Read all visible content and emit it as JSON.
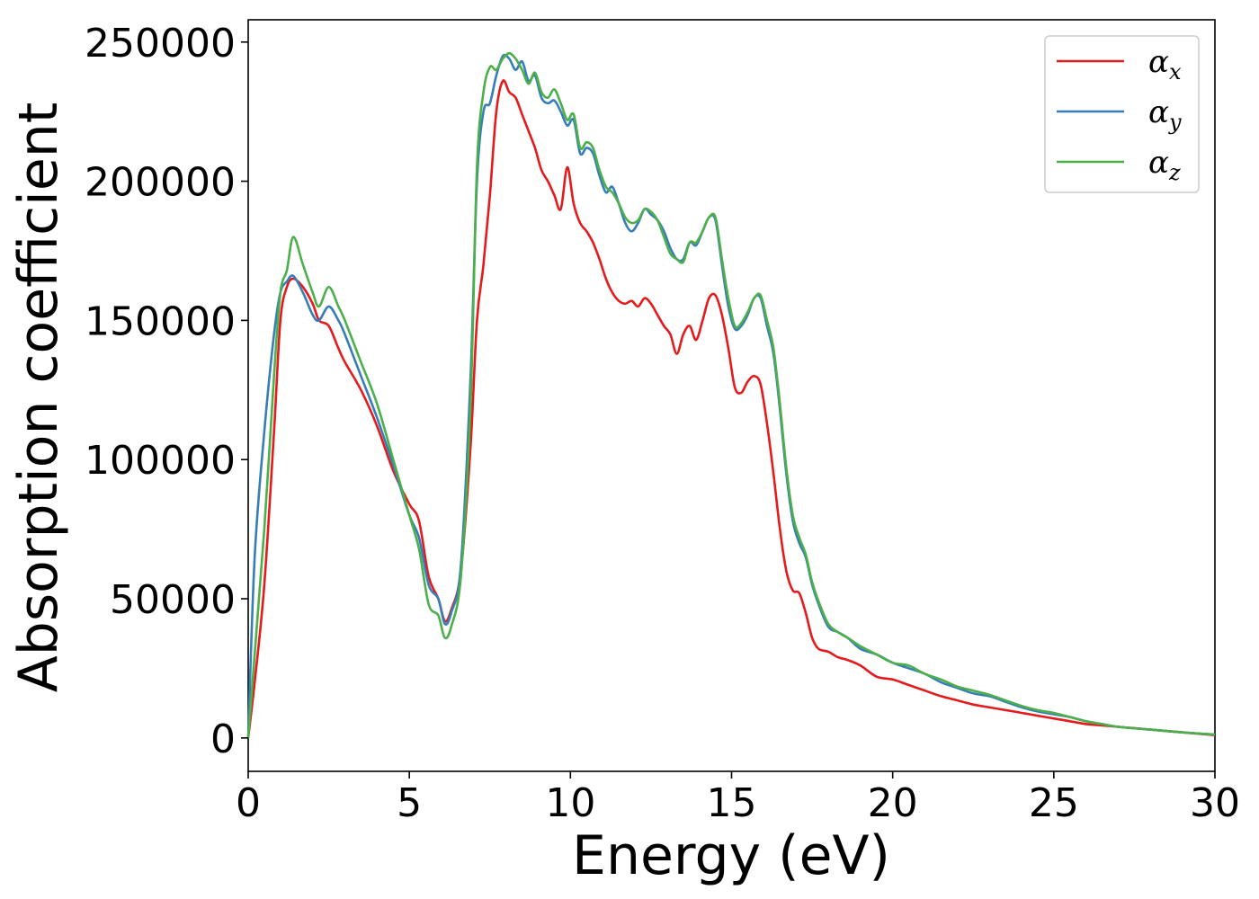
{
  "chart_data": {
    "type": "line",
    "title": "",
    "xlabel": "Energy (eV)",
    "ylabel": "Absorption coefficient",
    "xlim": [
      0,
      30
    ],
    "ylim": [
      -12000,
      258000
    ],
    "xticks": [
      0,
      5,
      10,
      15,
      20,
      25,
      30
    ],
    "yticks": [
      0,
      50000,
      100000,
      150000,
      200000,
      250000
    ],
    "grid": false,
    "legend_position": "top-right",
    "series": [
      {
        "name": "α_x",
        "symbol": "α",
        "subscript": "x",
        "color": "#e41a1c",
        "x": [
          0,
          0.2,
          0.5,
          0.8,
          1.0,
          1.2,
          1.4,
          1.7,
          2.0,
          2.2,
          2.5,
          2.8,
          3.0,
          3.5,
          4.0,
          4.5,
          5.0,
          5.3,
          5.6,
          5.9,
          6.1,
          6.3,
          6.6,
          6.9,
          7.1,
          7.3,
          7.5,
          7.7,
          7.9,
          8.1,
          8.3,
          8.5,
          8.7,
          8.9,
          9.1,
          9.3,
          9.5,
          9.7,
          9.9,
          10.1,
          10.3,
          10.5,
          10.7,
          10.9,
          11.1,
          11.3,
          11.5,
          11.7,
          11.9,
          12.1,
          12.3,
          12.5,
          12.7,
          12.9,
          13.1,
          13.3,
          13.5,
          13.7,
          13.9,
          14.1,
          14.3,
          14.5,
          14.7,
          14.9,
          15.1,
          15.3,
          15.5,
          15.7,
          15.9,
          16.1,
          16.3,
          16.5,
          16.7,
          16.9,
          17.1,
          17.3,
          17.5,
          17.7,
          18.0,
          18.3,
          18.6,
          19.0,
          19.5,
          20.0,
          20.5,
          21.0,
          21.5,
          22.0,
          22.5,
          23.0,
          23.5,
          24.0,
          24.5,
          25.0,
          25.5,
          26.0,
          26.5,
          27.0,
          28.0,
          29.0,
          30.0
        ],
        "y": [
          0,
          20000,
          55000,
          110000,
          150000,
          162000,
          165000,
          162000,
          156000,
          150000,
          148000,
          140000,
          135000,
          125000,
          112000,
          96000,
          84000,
          78000,
          58000,
          50000,
          42000,
          46000,
          60000,
          105000,
          150000,
          170000,
          195000,
          225000,
          236000,
          232000,
          230000,
          224000,
          218000,
          212000,
          204000,
          200000,
          195000,
          190000,
          205000,
          192000,
          185000,
          182000,
          178000,
          172000,
          165000,
          160000,
          157000,
          156000,
          157000,
          155000,
          158000,
          156000,
          152000,
          148000,
          145000,
          138000,
          145000,
          148000,
          143000,
          150000,
          158000,
          159000,
          152000,
          140000,
          126000,
          124000,
          128000,
          130000,
          127000,
          113000,
          95000,
          75000,
          60000,
          53000,
          52000,
          45000,
          36000,
          32000,
          31000,
          29000,
          28000,
          26000,
          22000,
          21000,
          19000,
          17000,
          15000,
          13500,
          12000,
          11000,
          10000,
          9000,
          8000,
          7000,
          6000,
          5000,
          4500,
          4000,
          3000,
          2000,
          1000
        ]
      },
      {
        "name": "α_y",
        "symbol": "α",
        "subscript": "y",
        "color": "#377eb8",
        "x": [
          0,
          0.2,
          0.5,
          0.8,
          1.0,
          1.2,
          1.4,
          1.7,
          2.0,
          2.2,
          2.5,
          2.8,
          3.0,
          3.5,
          4.0,
          4.5,
          5.0,
          5.3,
          5.6,
          5.9,
          6.1,
          6.3,
          6.6,
          6.9,
          7.1,
          7.3,
          7.5,
          7.7,
          7.9,
          8.1,
          8.3,
          8.5,
          8.7,
          8.9,
          9.1,
          9.3,
          9.5,
          9.7,
          9.9,
          10.1,
          10.3,
          10.5,
          10.7,
          10.9,
          11.1,
          11.3,
          11.5,
          11.7,
          11.9,
          12.1,
          12.3,
          12.5,
          12.7,
          12.9,
          13.1,
          13.3,
          13.5,
          13.7,
          13.9,
          14.1,
          14.3,
          14.5,
          14.7,
          14.9,
          15.1,
          15.3,
          15.5,
          15.7,
          15.9,
          16.1,
          16.3,
          16.5,
          16.7,
          16.9,
          17.1,
          17.3,
          17.5,
          17.7,
          18.0,
          18.3,
          18.6,
          19.0,
          19.5,
          20.0,
          20.5,
          21.0,
          21.5,
          22.0,
          22.5,
          23.0,
          23.5,
          24.0,
          24.5,
          25.0,
          25.5,
          26.0,
          26.5,
          27.0,
          28.0,
          29.0,
          30.0
        ],
        "y": [
          0,
          65000,
          110000,
          145000,
          160000,
          164000,
          166000,
          160000,
          152000,
          150000,
          155000,
          150000,
          145000,
          130000,
          115000,
          98000,
          80000,
          72000,
          55000,
          50000,
          41000,
          45000,
          62000,
          130000,
          200000,
          225000,
          228000,
          238000,
          245000,
          244000,
          240000,
          243000,
          236000,
          238000,
          230000,
          228000,
          229000,
          225000,
          220000,
          222000,
          210000,
          212000,
          210000,
          202000,
          196000,
          198000,
          192000,
          185000,
          182000,
          185000,
          190000,
          188000,
          186000,
          182000,
          176000,
          172000,
          172000,
          178000,
          177000,
          182000,
          187000,
          186000,
          170000,
          155000,
          147000,
          148000,
          152000,
          158000,
          158000,
          148000,
          138000,
          118000,
          95000,
          78000,
          70000,
          65000,
          55000,
          48000,
          40000,
          38000,
          36000,
          32000,
          30000,
          27000,
          25000,
          23000,
          20000,
          18000,
          16000,
          15000,
          13000,
          11000,
          9500,
          8500,
          7500,
          6000,
          5000,
          4000,
          3000,
          2000,
          1200
        ]
      },
      {
        "name": "α_z",
        "symbol": "α",
        "subscript": "z",
        "color": "#4daf4a",
        "x": [
          0,
          0.2,
          0.5,
          0.8,
          1.0,
          1.2,
          1.4,
          1.7,
          2.0,
          2.2,
          2.5,
          2.8,
          3.0,
          3.5,
          4.0,
          4.5,
          5.0,
          5.3,
          5.6,
          5.9,
          6.1,
          6.3,
          6.6,
          6.9,
          7.1,
          7.3,
          7.5,
          7.7,
          7.9,
          8.1,
          8.3,
          8.5,
          8.7,
          8.9,
          9.1,
          9.3,
          9.5,
          9.7,
          9.9,
          10.1,
          10.3,
          10.5,
          10.7,
          10.9,
          11.1,
          11.3,
          11.5,
          11.7,
          11.9,
          12.1,
          12.3,
          12.5,
          12.7,
          12.9,
          13.1,
          13.3,
          13.5,
          13.7,
          13.9,
          14.1,
          14.3,
          14.5,
          14.7,
          14.9,
          15.1,
          15.3,
          15.5,
          15.7,
          15.9,
          16.1,
          16.3,
          16.5,
          16.7,
          16.9,
          17.1,
          17.3,
          17.5,
          17.7,
          18.0,
          18.3,
          18.6,
          19.0,
          19.5,
          20.0,
          20.5,
          21.0,
          21.5,
          22.0,
          22.5,
          23.0,
          23.5,
          24.0,
          24.5,
          25.0,
          25.5,
          26.0,
          26.5,
          27.0,
          28.0,
          29.0,
          30.0
        ],
        "y": [
          0,
          30000,
          75000,
          130000,
          160000,
          168000,
          180000,
          170000,
          160000,
          155000,
          162000,
          155000,
          150000,
          135000,
          120000,
          100000,
          80000,
          68000,
          48000,
          44000,
          36000,
          40000,
          58000,
          120000,
          205000,
          232000,
          241000,
          240000,
          244000,
          246000,
          244000,
          240000,
          235000,
          239000,
          232000,
          230000,
          233000,
          228000,
          222000,
          224000,
          212000,
          214000,
          212000,
          204000,
          198000,
          196000,
          192000,
          187000,
          185000,
          186000,
          190000,
          189000,
          186000,
          180000,
          174000,
          172000,
          171000,
          178000,
          178000,
          182000,
          187000,
          187000,
          172000,
          158000,
          148000,
          149000,
          153000,
          158000,
          159000,
          150000,
          140000,
          120000,
          97000,
          80000,
          72000,
          66000,
          56000,
          49000,
          41000,
          38000,
          36000,
          33000,
          30000,
          27000,
          26000,
          23000,
          21000,
          18500,
          17000,
          15500,
          13500,
          11500,
          10000,
          9000,
          7500,
          6000,
          5000,
          4000,
          3000,
          2000,
          1200
        ]
      }
    ]
  }
}
